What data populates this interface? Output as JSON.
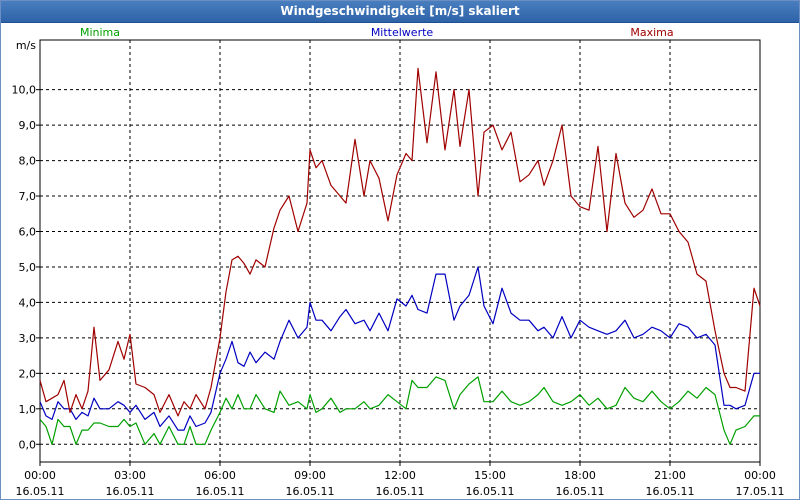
{
  "window_title": "Windgeschwindigkeit [m/s] skaliert",
  "colors": {
    "minima": "#00a000",
    "mittel": "#0000c0",
    "maxima": "#a00000",
    "title_bg": "#3a6fb5"
  },
  "chart_data": {
    "type": "line",
    "title": "Windgeschwindigkeit [m/s] skaliert",
    "ylabel": "m/s",
    "ylim": [
      -0.5,
      11.4
    ],
    "xlim_hours": [
      0,
      24
    ],
    "y_ticks": [
      {
        "value": 0,
        "label": "0,0"
      },
      {
        "value": 1,
        "label": "1,0"
      },
      {
        "value": 2,
        "label": "2,0"
      },
      {
        "value": 3,
        "label": "3,0"
      },
      {
        "value": 4,
        "label": "4,0"
      },
      {
        "value": 5,
        "label": "5,0"
      },
      {
        "value": 6,
        "label": "6,0"
      },
      {
        "value": 7,
        "label": "7,0"
      },
      {
        "value": 8,
        "label": "8,0"
      },
      {
        "value": 9,
        "label": "9,0"
      },
      {
        "value": 10,
        "label": "10,0"
      }
    ],
    "x_ticks": [
      {
        "hour": 0,
        "time": "00:00",
        "date": "16.05.11"
      },
      {
        "hour": 3,
        "time": "03:00",
        "date": "16.05.11"
      },
      {
        "hour": 6,
        "time": "06:00",
        "date": "16.05.11"
      },
      {
        "hour": 9,
        "time": "09:00",
        "date": "16.05.11"
      },
      {
        "hour": 12,
        "time": "12:00",
        "date": "16.05.11"
      },
      {
        "hour": 15,
        "time": "15:00",
        "date": "16.05.11"
      },
      {
        "hour": 18,
        "time": "18:00",
        "date": "16.05.11"
      },
      {
        "hour": 21,
        "time": "21:00",
        "date": "16.05.11"
      },
      {
        "hour": 24,
        "time": "00:00",
        "date": "17.05.11"
      }
    ],
    "grid": true,
    "series": [
      {
        "name": "Minima",
        "color": "#00a000",
        "points": [
          [
            0,
            0.7
          ],
          [
            0.2,
            0.5
          ],
          [
            0.4,
            0.0
          ],
          [
            0.6,
            0.7
          ],
          [
            0.8,
            0.5
          ],
          [
            1.0,
            0.5
          ],
          [
            1.2,
            0.0
          ],
          [
            1.4,
            0.4
          ],
          [
            1.6,
            0.4
          ],
          [
            1.8,
            0.6
          ],
          [
            2.0,
            0.6
          ],
          [
            2.3,
            0.5
          ],
          [
            2.6,
            0.5
          ],
          [
            2.8,
            0.7
          ],
          [
            3.0,
            0.5
          ],
          [
            3.2,
            0.6
          ],
          [
            3.5,
            0.0
          ],
          [
            3.8,
            0.3
          ],
          [
            4.0,
            0.0
          ],
          [
            4.3,
            0.5
          ],
          [
            4.6,
            0.0
          ],
          [
            4.8,
            0.0
          ],
          [
            5.0,
            0.5
          ],
          [
            5.2,
            0.0
          ],
          [
            5.5,
            0.0
          ],
          [
            5.7,
            0.4
          ],
          [
            6.0,
            0.9
          ],
          [
            6.2,
            1.3
          ],
          [
            6.4,
            1.0
          ],
          [
            6.6,
            1.4
          ],
          [
            6.8,
            1.0
          ],
          [
            7.0,
            1.0
          ],
          [
            7.2,
            1.4
          ],
          [
            7.5,
            1.0
          ],
          [
            7.8,
            0.9
          ],
          [
            8.0,
            1.5
          ],
          [
            8.3,
            1.1
          ],
          [
            8.6,
            1.2
          ],
          [
            8.9,
            1.0
          ],
          [
            9.0,
            1.4
          ],
          [
            9.2,
            0.9
          ],
          [
            9.4,
            1.0
          ],
          [
            9.7,
            1.3
          ],
          [
            10.0,
            0.9
          ],
          [
            10.2,
            1.0
          ],
          [
            10.5,
            1.0
          ],
          [
            10.8,
            1.2
          ],
          [
            11.0,
            1.0
          ],
          [
            11.3,
            1.1
          ],
          [
            11.6,
            1.4
          ],
          [
            11.9,
            1.2
          ],
          [
            12.2,
            1.0
          ],
          [
            12.4,
            1.8
          ],
          [
            12.6,
            1.6
          ],
          [
            12.9,
            1.6
          ],
          [
            13.2,
            1.9
          ],
          [
            13.5,
            1.8
          ],
          [
            13.8,
            1.0
          ],
          [
            14.0,
            1.4
          ],
          [
            14.3,
            1.7
          ],
          [
            14.6,
            1.9
          ],
          [
            14.8,
            1.2
          ],
          [
            15.1,
            1.2
          ],
          [
            15.4,
            1.5
          ],
          [
            15.7,
            1.2
          ],
          [
            16.0,
            1.1
          ],
          [
            16.3,
            1.2
          ],
          [
            16.6,
            1.4
          ],
          [
            16.8,
            1.6
          ],
          [
            17.1,
            1.2
          ],
          [
            17.4,
            1.1
          ],
          [
            17.7,
            1.2
          ],
          [
            18.0,
            1.4
          ],
          [
            18.3,
            1.1
          ],
          [
            18.6,
            1.3
          ],
          [
            18.9,
            1.0
          ],
          [
            19.2,
            1.1
          ],
          [
            19.5,
            1.6
          ],
          [
            19.8,
            1.3
          ],
          [
            20.1,
            1.2
          ],
          [
            20.4,
            1.5
          ],
          [
            20.7,
            1.2
          ],
          [
            21.0,
            1.0
          ],
          [
            21.3,
            1.2
          ],
          [
            21.6,
            1.5
          ],
          [
            21.9,
            1.3
          ],
          [
            22.2,
            1.6
          ],
          [
            22.5,
            1.4
          ],
          [
            22.8,
            0.4
          ],
          [
            23.0,
            0.0
          ],
          [
            23.2,
            0.4
          ],
          [
            23.5,
            0.5
          ],
          [
            23.8,
            0.8
          ],
          [
            24.0,
            0.8
          ]
        ]
      },
      {
        "name": "Mittelwerte",
        "color": "#0000c0",
        "points": [
          [
            0,
            1.2
          ],
          [
            0.2,
            0.8
          ],
          [
            0.4,
            0.7
          ],
          [
            0.6,
            1.2
          ],
          [
            0.8,
            1.0
          ],
          [
            1.0,
            1.0
          ],
          [
            1.2,
            0.7
          ],
          [
            1.4,
            0.9
          ],
          [
            1.6,
            0.8
          ],
          [
            1.8,
            1.3
          ],
          [
            2.0,
            1.0
          ],
          [
            2.3,
            1.0
          ],
          [
            2.6,
            1.2
          ],
          [
            2.8,
            1.1
          ],
          [
            3.0,
            0.9
          ],
          [
            3.2,
            1.1
          ],
          [
            3.5,
            0.7
          ],
          [
            3.8,
            0.9
          ],
          [
            4.0,
            0.5
          ],
          [
            4.3,
            0.8
          ],
          [
            4.6,
            0.4
          ],
          [
            4.8,
            0.4
          ],
          [
            5.0,
            0.8
          ],
          [
            5.2,
            0.5
          ],
          [
            5.5,
            0.6
          ],
          [
            5.7,
            0.9
          ],
          [
            6.0,
            2.0
          ],
          [
            6.2,
            2.4
          ],
          [
            6.4,
            2.9
          ],
          [
            6.6,
            2.3
          ],
          [
            6.8,
            2.2
          ],
          [
            7.0,
            2.6
          ],
          [
            7.2,
            2.3
          ],
          [
            7.5,
            2.6
          ],
          [
            7.8,
            2.4
          ],
          [
            8.0,
            2.9
          ],
          [
            8.3,
            3.5
          ],
          [
            8.6,
            3.0
          ],
          [
            8.9,
            3.3
          ],
          [
            9.0,
            4.0
          ],
          [
            9.2,
            3.5
          ],
          [
            9.4,
            3.5
          ],
          [
            9.7,
            3.2
          ],
          [
            10.0,
            3.6
          ],
          [
            10.2,
            3.8
          ],
          [
            10.5,
            3.4
          ],
          [
            10.8,
            3.5
          ],
          [
            11.0,
            3.2
          ],
          [
            11.3,
            3.7
          ],
          [
            11.6,
            3.2
          ],
          [
            11.9,
            4.1
          ],
          [
            12.2,
            3.9
          ],
          [
            12.4,
            4.2
          ],
          [
            12.6,
            3.8
          ],
          [
            12.9,
            3.7
          ],
          [
            13.2,
            4.8
          ],
          [
            13.5,
            4.8
          ],
          [
            13.8,
            3.5
          ],
          [
            14.0,
            3.9
          ],
          [
            14.3,
            4.2
          ],
          [
            14.6,
            5.0
          ],
          [
            14.8,
            3.9
          ],
          [
            15.1,
            3.4
          ],
          [
            15.4,
            4.4
          ],
          [
            15.7,
            3.7
          ],
          [
            16.0,
            3.5
          ],
          [
            16.3,
            3.5
          ],
          [
            16.6,
            3.2
          ],
          [
            16.8,
            3.3
          ],
          [
            17.1,
            3.0
          ],
          [
            17.4,
            3.6
          ],
          [
            17.7,
            3.0
          ],
          [
            18.0,
            3.5
          ],
          [
            18.3,
            3.3
          ],
          [
            18.6,
            3.2
          ],
          [
            18.9,
            3.1
          ],
          [
            19.2,
            3.2
          ],
          [
            19.5,
            3.5
          ],
          [
            19.8,
            3.0
          ],
          [
            20.1,
            3.1
          ],
          [
            20.4,
            3.3
          ],
          [
            20.7,
            3.2
          ],
          [
            21.0,
            3.0
          ],
          [
            21.3,
            3.4
          ],
          [
            21.6,
            3.3
          ],
          [
            21.9,
            3.0
          ],
          [
            22.2,
            3.1
          ],
          [
            22.5,
            2.8
          ],
          [
            22.8,
            1.1
          ],
          [
            23.0,
            1.1
          ],
          [
            23.2,
            1.0
          ],
          [
            23.5,
            1.1
          ],
          [
            23.8,
            2.0
          ],
          [
            24.0,
            2.0
          ]
        ]
      },
      {
        "name": "Maxima",
        "color": "#a00000",
        "points": [
          [
            0,
            1.8
          ],
          [
            0.2,
            1.2
          ],
          [
            0.4,
            1.3
          ],
          [
            0.6,
            1.4
          ],
          [
            0.8,
            1.8
          ],
          [
            1.0,
            0.9
          ],
          [
            1.2,
            1.4
          ],
          [
            1.4,
            1.0
          ],
          [
            1.6,
            1.5
          ],
          [
            1.8,
            3.3
          ],
          [
            2.0,
            1.8
          ],
          [
            2.3,
            2.1
          ],
          [
            2.6,
            2.9
          ],
          [
            2.8,
            2.4
          ],
          [
            3.0,
            3.1
          ],
          [
            3.2,
            1.7
          ],
          [
            3.5,
            1.6
          ],
          [
            3.8,
            1.4
          ],
          [
            4.0,
            0.9
          ],
          [
            4.3,
            1.4
          ],
          [
            4.6,
            0.8
          ],
          [
            4.8,
            1.2
          ],
          [
            5.0,
            1.0
          ],
          [
            5.2,
            1.4
          ],
          [
            5.5,
            1.0
          ],
          [
            5.7,
            1.6
          ],
          [
            6.0,
            3.0
          ],
          [
            6.2,
            4.3
          ],
          [
            6.4,
            5.2
          ],
          [
            6.6,
            5.3
          ],
          [
            6.8,
            5.1
          ],
          [
            7.0,
            4.8
          ],
          [
            7.2,
            5.2
          ],
          [
            7.5,
            5.0
          ],
          [
            7.8,
            6.1
          ],
          [
            8.0,
            6.6
          ],
          [
            8.3,
            7.0
          ],
          [
            8.6,
            6.0
          ],
          [
            8.9,
            6.8
          ],
          [
            9.0,
            8.3
          ],
          [
            9.2,
            7.8
          ],
          [
            9.4,
            8.0
          ],
          [
            9.7,
            7.3
          ],
          [
            10.0,
            7.0
          ],
          [
            10.2,
            6.8
          ],
          [
            10.5,
            8.6
          ],
          [
            10.8,
            7.0
          ],
          [
            11.0,
            8.0
          ],
          [
            11.3,
            7.5
          ],
          [
            11.6,
            6.3
          ],
          [
            11.9,
            7.6
          ],
          [
            12.2,
            8.2
          ],
          [
            12.4,
            8.0
          ],
          [
            12.6,
            10.6
          ],
          [
            12.9,
            8.5
          ],
          [
            13.2,
            10.5
          ],
          [
            13.5,
            8.3
          ],
          [
            13.8,
            10.0
          ],
          [
            14.0,
            8.4
          ],
          [
            14.3,
            10.0
          ],
          [
            14.6,
            7.0
          ],
          [
            14.8,
            8.8
          ],
          [
            15.1,
            9.0
          ],
          [
            15.4,
            8.3
          ],
          [
            15.7,
            8.8
          ],
          [
            16.0,
            7.4
          ],
          [
            16.3,
            7.6
          ],
          [
            16.6,
            8.0
          ],
          [
            16.8,
            7.3
          ],
          [
            17.1,
            8.0
          ],
          [
            17.4,
            9.0
          ],
          [
            17.7,
            7.0
          ],
          [
            18.0,
            6.7
          ],
          [
            18.3,
            6.6
          ],
          [
            18.6,
            8.4
          ],
          [
            18.9,
            6.0
          ],
          [
            19.2,
            8.2
          ],
          [
            19.5,
            6.8
          ],
          [
            19.8,
            6.4
          ],
          [
            20.1,
            6.6
          ],
          [
            20.4,
            7.2
          ],
          [
            20.7,
            6.5
          ],
          [
            21.0,
            6.5
          ],
          [
            21.3,
            6.0
          ],
          [
            21.6,
            5.7
          ],
          [
            21.9,
            4.8
          ],
          [
            22.2,
            4.6
          ],
          [
            22.5,
            3.2
          ],
          [
            22.8,
            2.0
          ],
          [
            23.0,
            1.6
          ],
          [
            23.2,
            1.6
          ],
          [
            23.5,
            1.5
          ],
          [
            23.8,
            4.4
          ],
          [
            24.0,
            3.9
          ]
        ]
      }
    ]
  }
}
